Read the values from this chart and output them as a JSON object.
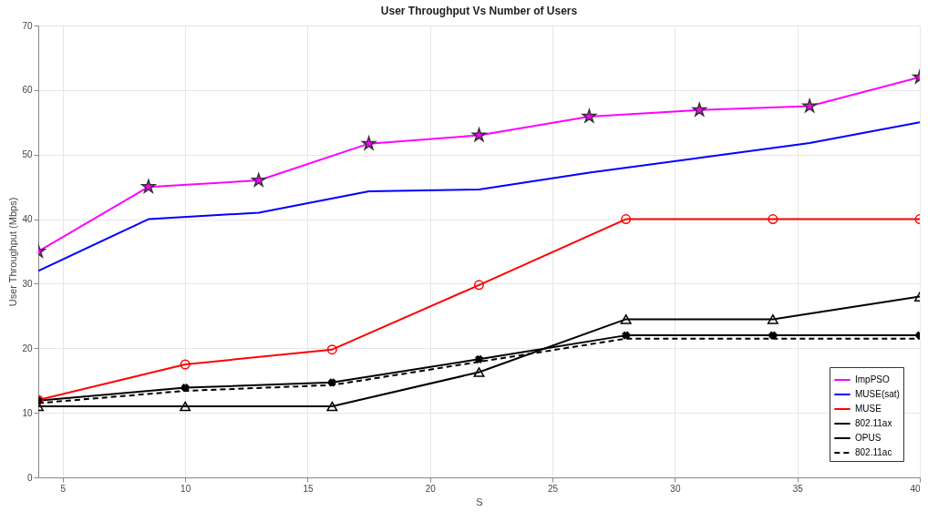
{
  "chart_data": {
    "type": "line",
    "title": "User Throughput Vs Number of Users",
    "xlabel": "S",
    "ylabel": "User Throughput (Mbps)",
    "xlim": [
      4,
      40
    ],
    "xticks": [
      5,
      10,
      15,
      20,
      25,
      30,
      35,
      40
    ],
    "ylim": [
      0,
      70
    ],
    "yticks": [
      0,
      10,
      20,
      30,
      40,
      50,
      60,
      70
    ],
    "grid": true,
    "legend": "bottom right",
    "series": [
      {
        "name": "ImpPSO",
        "color": "#ff00ff",
        "marker": "star",
        "line_style": "solid",
        "x": [
          4,
          8.5,
          13,
          17.5,
          22,
          26.5,
          31,
          35.5,
          40
        ],
        "values": [
          35,
          45,
          46,
          51.7,
          53,
          55.9,
          56.9,
          57.5,
          62
        ]
      },
      {
        "name": "MUSE(sat)",
        "color": "#0000ff",
        "marker": "none",
        "line_style": "solid",
        "x": [
          4,
          8.5,
          13,
          17.5,
          22,
          26.5,
          31,
          35.5,
          40
        ],
        "values": [
          32,
          40,
          41,
          44.3,
          44.6,
          47.2,
          49.5,
          51.8,
          55
        ]
      },
      {
        "name": "MUSE",
        "color": "#ff0000",
        "marker": "circle",
        "line_style": "solid",
        "x": [
          4,
          10,
          16,
          22,
          28,
          34,
          40
        ],
        "values": [
          12,
          17.5,
          19.8,
          29.8,
          40,
          40,
          40
        ]
      },
      {
        "name": "802.11ax",
        "color": "#000000",
        "marker": "triangle",
        "line_style": "solid",
        "x": [
          4,
          10,
          16,
          22,
          28,
          34,
          40
        ],
        "values": [
          11,
          11,
          11,
          16.3,
          24.5,
          24.5,
          28
        ]
      },
      {
        "name": "OPUS",
        "color": "#000000",
        "marker": "cross",
        "line_style": "solid",
        "x": [
          4,
          10,
          16,
          22,
          28,
          34,
          40
        ],
        "values": [
          11.9,
          13.9,
          14.7,
          18.3,
          22,
          22,
          22
        ]
      },
      {
        "name": "802.11ac",
        "color": "#000000",
        "marker": "none",
        "line_style": "dashed",
        "x": [
          4,
          10,
          16,
          22,
          28,
          34,
          40
        ],
        "values": [
          11.5,
          13.4,
          14.3,
          17.9,
          21.5,
          21.5,
          21.5
        ]
      }
    ]
  }
}
